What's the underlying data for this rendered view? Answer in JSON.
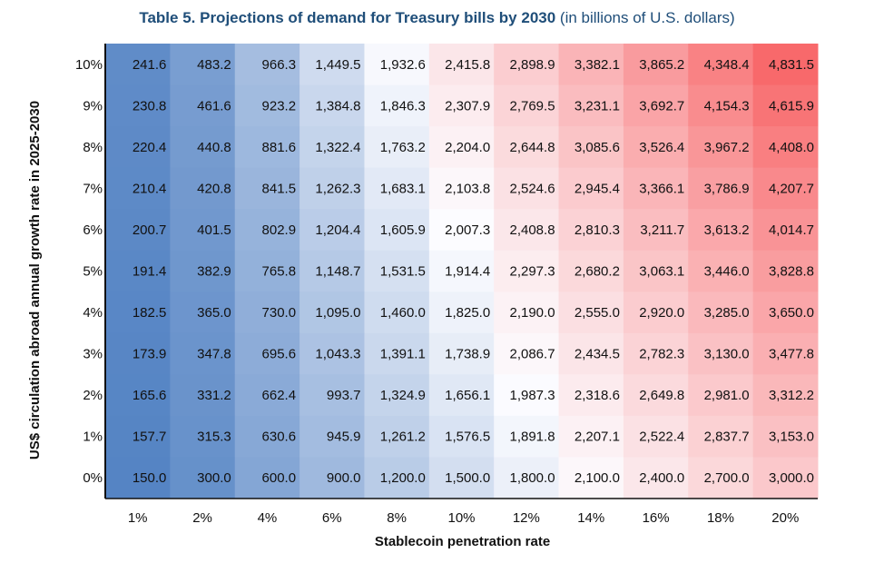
{
  "title": {
    "bold": "Table 5. Projections of demand for Treasury bills by 2030",
    "light": " (in billions of U.S. dollars)"
  },
  "colors": {
    "low": "#5584c4",
    "mid": "#fcfcff",
    "high": "#f8696b",
    "title": "#1f4e79"
  },
  "chart_data": {
    "type": "heatmap",
    "title": "Table 5. Projections of demand for Treasury bills by 2030 (in billions of U.S. dollars)",
    "xlabel": "Stablecoin penetration rate",
    "ylabel": "US$ circulation abroad annual growth rate in 2025-2030",
    "x": [
      "1%",
      "2%",
      "4%",
      "6%",
      "8%",
      "10%",
      "12%",
      "14%",
      "16%",
      "18%",
      "20%"
    ],
    "y": [
      "10%",
      "9%",
      "8%",
      "7%",
      "6%",
      "5%",
      "4%",
      "3%",
      "2%",
      "1%",
      "0%"
    ],
    "color_scale": "diverging blue-white-red (per-column shading, low to high)",
    "values": [
      [
        241.6,
        483.2,
        966.3,
        1449.5,
        1932.6,
        2415.8,
        2898.9,
        3382.1,
        3865.2,
        4348.4,
        4831.5
      ],
      [
        230.8,
        461.6,
        923.2,
        1384.8,
        1846.3,
        2307.9,
        2769.5,
        3231.1,
        3692.7,
        4154.3,
        4615.9
      ],
      [
        220.4,
        440.8,
        881.6,
        1322.4,
        1763.2,
        2204.0,
        2644.8,
        3085.6,
        3526.4,
        3967.2,
        4408.0
      ],
      [
        210.4,
        420.8,
        841.5,
        1262.3,
        1683.1,
        2103.8,
        2524.6,
        2945.4,
        3366.1,
        3786.9,
        4207.7
      ],
      [
        200.7,
        401.5,
        802.9,
        1204.4,
        1605.9,
        2007.3,
        2408.8,
        2810.3,
        3211.7,
        3613.2,
        4014.7
      ],
      [
        191.4,
        382.9,
        765.8,
        1148.7,
        1531.5,
        1914.4,
        2297.3,
        2680.2,
        3063.1,
        3446.0,
        3828.8
      ],
      [
        182.5,
        365.0,
        730.0,
        1095.0,
        1460.0,
        1825.0,
        2190.0,
        2555.0,
        2920.0,
        3285.0,
        3650.0
      ],
      [
        173.9,
        347.8,
        695.6,
        1043.3,
        1391.1,
        1738.9,
        2086.7,
        2434.5,
        2782.3,
        3130.0,
        3477.8
      ],
      [
        165.6,
        331.2,
        662.4,
        993.7,
        1324.9,
        1656.1,
        1987.3,
        2318.6,
        2649.8,
        2981.0,
        3312.2
      ],
      [
        157.7,
        315.3,
        630.6,
        945.9,
        1261.2,
        1576.5,
        1891.8,
        2207.1,
        2522.4,
        2837.7,
        3153.0
      ],
      [
        150.0,
        300.0,
        600.0,
        900.0,
        1200.0,
        1500.0,
        1800.0,
        2100.0,
        2400.0,
        2700.0,
        3000.0
      ]
    ],
    "value_format": "thousands separator, one decimal"
  }
}
